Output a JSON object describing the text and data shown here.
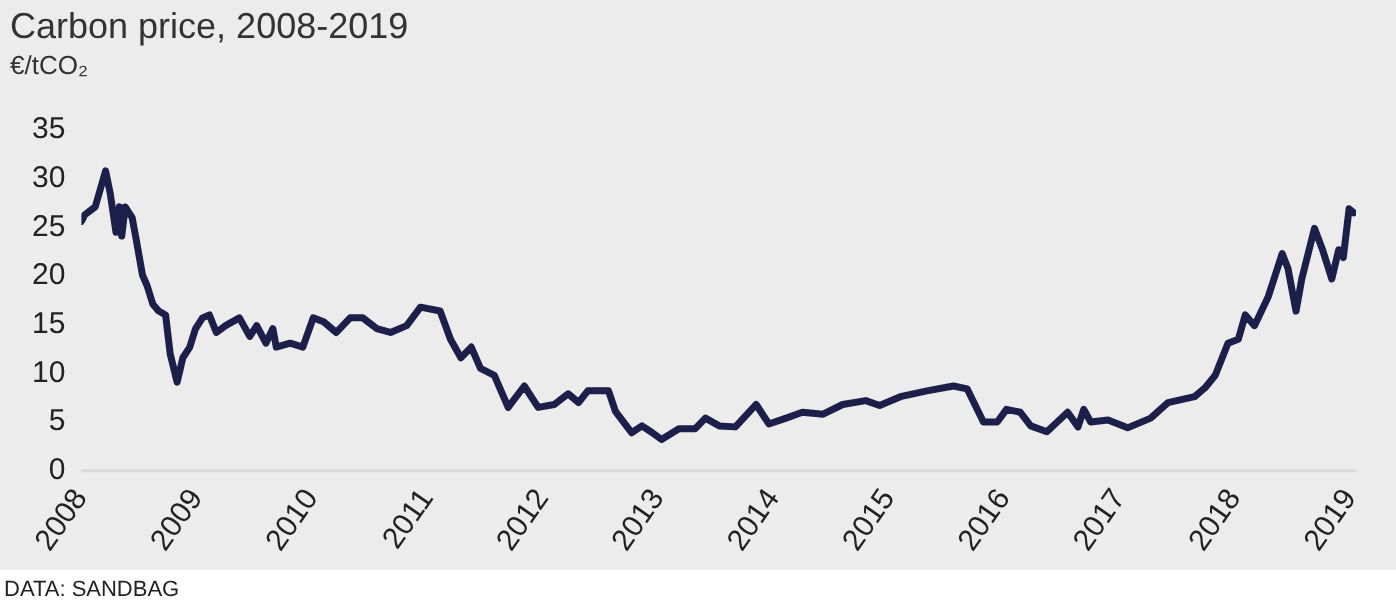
{
  "chart_data": {
    "type": "line",
    "title": "Carbon price, 2008-2019",
    "subtitle": "€/tCO₂",
    "annotations": [
      "DATA: SANDBAG"
    ],
    "x": [
      2008.0,
      2008.03,
      2008.12,
      2008.21,
      2008.25,
      2008.3,
      2008.33,
      2008.35,
      2008.38,
      2008.44,
      2008.47,
      2008.53,
      2008.57,
      2008.62,
      2008.67,
      2008.73,
      2008.77,
      2008.83,
      2008.88,
      2008.94,
      2008.99,
      2009.05,
      2009.11,
      2009.17,
      2009.25,
      2009.37,
      2009.46,
      2009.52,
      2009.6,
      2009.66,
      2009.69,
      2009.81,
      2009.92,
      2010.01,
      2010.1,
      2010.21,
      2010.33,
      2010.44,
      2010.56,
      2010.68,
      2010.82,
      2010.94,
      2011.11,
      2011.2,
      2011.29,
      2011.38,
      2011.46,
      2011.58,
      2011.7,
      2011.84,
      2011.96,
      2012.1,
      2012.22,
      2012.31,
      2012.39,
      2012.57,
      2012.63,
      2012.77,
      2012.86,
      2012.95,
      2013.03,
      2013.18,
      2013.32,
      2013.41,
      2013.53,
      2013.67,
      2013.85,
      2013.96,
      2014.11,
      2014.25,
      2014.43,
      2014.6,
      2014.8,
      2014.92,
      2015.1,
      2015.33,
      2015.56,
      2015.68,
      2015.82,
      2015.94,
      2016.02,
      2016.14,
      2016.23,
      2016.37,
      2016.55,
      2016.64,
      2016.69,
      2016.75,
      2016.9,
      2017.07,
      2017.27,
      2017.42,
      2017.65,
      2017.74,
      2017.83,
      2017.94,
      2018.03,
      2018.09,
      2018.17,
      2018.29,
      2018.41,
      2018.46,
      2018.53,
      2018.58,
      2018.69,
      2018.76,
      2018.84,
      2018.9,
      2018.94,
      2018.99,
      2019.03
    ],
    "series": [
      {
        "color": "#1c1f4a",
        "values": [
          25.6,
          26.3,
          27.1,
          30.8,
          28.5,
          24.5,
          27.1,
          24.1,
          27.1,
          26.0,
          24.1,
          20.1,
          19.0,
          17.1,
          16.4,
          16.0,
          12.0,
          9.1,
          11.6,
          12.7,
          14.6,
          15.7,
          16.0,
          14.2,
          14.9,
          15.7,
          13.8,
          14.9,
          13.1,
          14.6,
          12.7,
          13.1,
          12.7,
          15.7,
          15.3,
          14.2,
          15.7,
          15.7,
          14.6,
          14.2,
          14.9,
          16.8,
          16.4,
          13.5,
          11.6,
          12.7,
          10.5,
          9.8,
          6.5,
          8.7,
          6.5,
          6.8,
          7.9,
          7.0,
          8.2,
          8.2,
          6.1,
          3.9,
          4.6,
          3.9,
          3.2,
          4.3,
          4.3,
          5.4,
          4.6,
          4.5,
          6.8,
          4.8,
          5.4,
          6.0,
          5.8,
          6.8,
          7.2,
          6.7,
          7.6,
          8.2,
          8.7,
          8.4,
          5.0,
          5.0,
          6.3,
          6.0,
          4.6,
          4.0,
          6.0,
          4.5,
          6.3,
          5.0,
          5.2,
          4.4,
          5.4,
          7.0,
          7.6,
          8.5,
          9.8,
          13.1,
          13.5,
          16.0,
          14.9,
          17.9,
          22.3,
          20.8,
          16.4,
          19.7,
          24.9,
          22.7,
          19.7,
          22.7,
          21.9,
          26.9,
          26.5
        ]
      }
    ],
    "xlim": [
      2008,
      2019.05
    ],
    "xticks": [
      2008,
      2009,
      2010,
      2011,
      2012,
      2013,
      2014,
      2015,
      2016,
      2017,
      2018,
      2019
    ],
    "ylim": [
      0,
      35
    ],
    "yticks": [
      0,
      5,
      10,
      15,
      20,
      25,
      30,
      35
    ],
    "grid": false,
    "legend": false,
    "marker": "none",
    "line_style": "solid"
  }
}
